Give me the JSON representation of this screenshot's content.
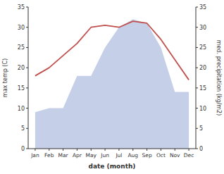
{
  "chart_data": {
    "type": "line",
    "categories": [
      "Jan",
      "Feb",
      "Mar",
      "Apr",
      "May",
      "Jun",
      "Jul",
      "Aug",
      "Sep",
      "Oct",
      "Nov",
      "Dec"
    ],
    "series": [
      {
        "type": "line",
        "color": "#c0504d",
        "values": [
          18,
          20,
          23,
          26,
          30,
          30.5,
          30,
          31.5,
          31,
          27,
          22,
          17
        ]
      },
      {
        "type": "area",
        "color": "#c5d0e8",
        "axis": "y2",
        "values": [
          9,
          10,
          10,
          18,
          18,
          25,
          30,
          32,
          31,
          25,
          14,
          14
        ]
      }
    ],
    "xlabel": "date (month)",
    "ylabel": "max temp (C)",
    "y2label": "med. precipitation (kg/m2)",
    "ylim": [
      0,
      35
    ],
    "yticks": [
      0,
      5,
      10,
      15,
      20,
      25,
      30,
      35
    ],
    "y2lim": [
      0,
      35
    ],
    "y2ticks": [
      0,
      5,
      10,
      15,
      20,
      25,
      30,
      35
    ],
    "grid": false
  }
}
